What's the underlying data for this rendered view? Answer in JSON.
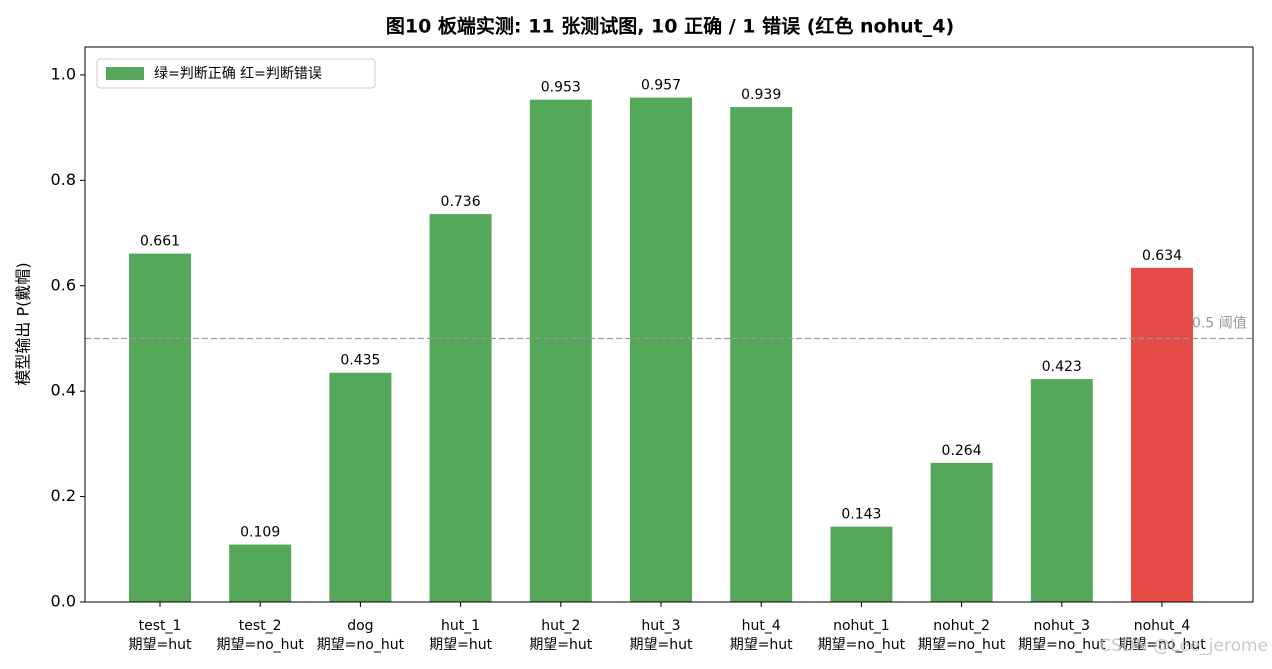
{
  "chart_data": {
    "type": "bar",
    "title": "图10  板端实测: 11 张测试图, 10 正确 / 1 错误 (红色 nohut_4)",
    "y_label": "模型输出 P(戴帽)",
    "categories": [
      [
        "test_1",
        "期望=hut"
      ],
      [
        "test_2",
        "期望=no_hut"
      ],
      [
        "dog",
        "期望=no_hut"
      ],
      [
        "hut_1",
        "期望=hut"
      ],
      [
        "hut_2",
        "期望=hut"
      ],
      [
        "hut_3",
        "期望=hut"
      ],
      [
        "hut_4",
        "期望=hut"
      ],
      [
        "nohut_1",
        "期望=no_hut"
      ],
      [
        "nohut_2",
        "期望=no_hut"
      ],
      [
        "nohut_3",
        "期望=no_hut"
      ],
      [
        "nohut_4",
        "期望=no_hut"
      ]
    ],
    "values": [
      0.661,
      0.109,
      0.435,
      0.736,
      0.953,
      0.957,
      0.939,
      0.143,
      0.264,
      0.423,
      0.634
    ],
    "colors": [
      "#55a85a",
      "#55a85a",
      "#55a85a",
      "#55a85a",
      "#55a85a",
      "#55a85a",
      "#55a85a",
      "#55a85a",
      "#55a85a",
      "#55a85a",
      "#e54b47"
    ],
    "legend": {
      "label": "绿=判断正确  红=判断错误",
      "color": "#55a85a",
      "position": "upper left"
    },
    "threshold": {
      "value": 0.5,
      "label": "0.5 阈值",
      "color": "#999999"
    },
    "ylim": [
      0,
      1.053
    ],
    "yticks": [
      {
        "value": 0,
        "label": "0.0"
      },
      0.2,
      0.4,
      0.6,
      0.8,
      {
        "value": 1,
        "label": "1.0"
      }
    ],
    "watermark": "CSDN @Lee_jerome"
  }
}
